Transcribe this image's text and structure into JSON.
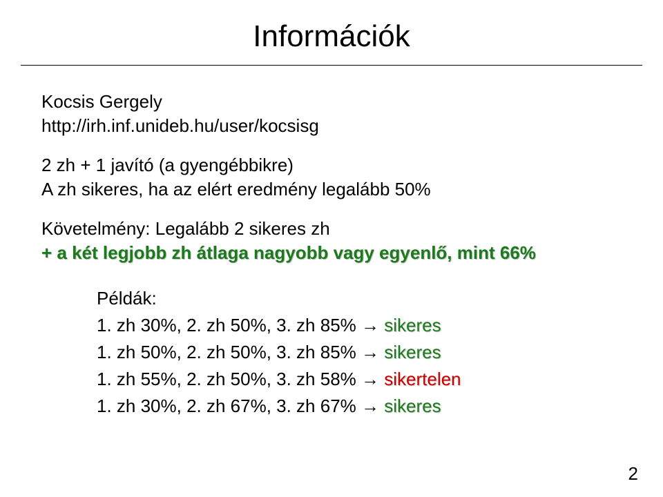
{
  "title": "Információk",
  "author": "Kocsis Gergely",
  "url": "http://irh.inf.unideb.hu/user/kocsisg",
  "zh_line": "2 zh + 1 javító (a gyengébbikre)",
  "success_line": "A zh sikeres, ha az elért eredmény legalább 50%",
  "requirement_line1": "Követelmény: Legalább 2 sikeres zh",
  "requirement_plus": "+ a két legjobb zh átlaga nagyobb vagy egyenlő, mint 66%",
  "examples_label": "Példák:",
  "example1_prefix": "1. zh 30%, 2. zh 50%, 3. zh 85% → ",
  "example1_result": "sikeres",
  "example2_prefix": "1. zh 50%, 2. zh 50%, 3. zh 85% → ",
  "example2_result": "sikeres",
  "example3_prefix": "1. zh 55%, 2. zh 50%, 3. zh 58% → ",
  "example3_result": "sikertelen",
  "example4_prefix": "1. zh 30%, 2. zh 67%, 3. zh 67% → ",
  "example4_result": "sikeres",
  "page_number": "2",
  "colors": {
    "text": "#000000",
    "green": "#1b7a1b",
    "red": "#cc0000",
    "shadow": "#c0c0c0",
    "background": "#ffffff",
    "rule": "#000000"
  },
  "fontsize": {
    "title": 44,
    "body": 26
  }
}
